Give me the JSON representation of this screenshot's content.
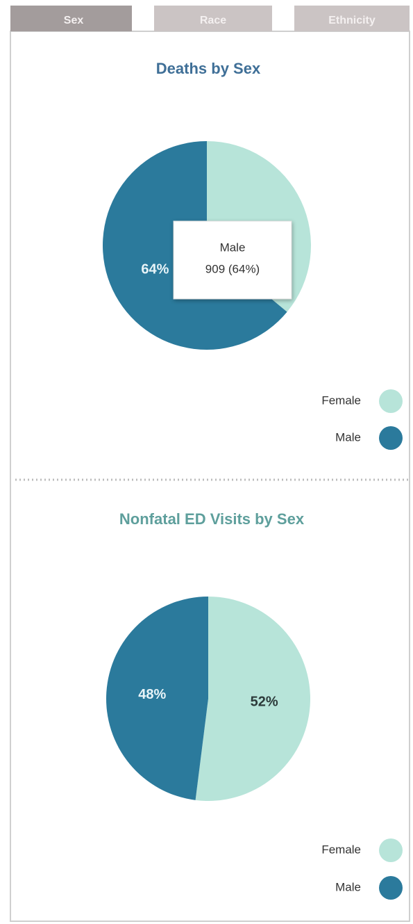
{
  "tabs": [
    "Sex",
    "Race",
    "Ethnicity"
  ],
  "chart_data": [
    {
      "type": "pie",
      "title": "Deaths by Sex",
      "categories": [
        "Female",
        "Male"
      ],
      "values": [
        36,
        64
      ],
      "value_labels": [
        null,
        "64%"
      ],
      "colors": [
        "#b7e4d9",
        "#2b7a9c"
      ],
      "tooltip": {
        "title": "Male",
        "text": "909 (64%)"
      }
    },
    {
      "type": "pie",
      "title": "Nonfatal ED Visits by Sex",
      "categories": [
        "Female",
        "Male"
      ],
      "values": [
        52,
        48
      ],
      "value_labels": [
        "52%",
        "48%"
      ],
      "colors": [
        "#b7e4d9",
        "#2b7a9c"
      ]
    }
  ]
}
